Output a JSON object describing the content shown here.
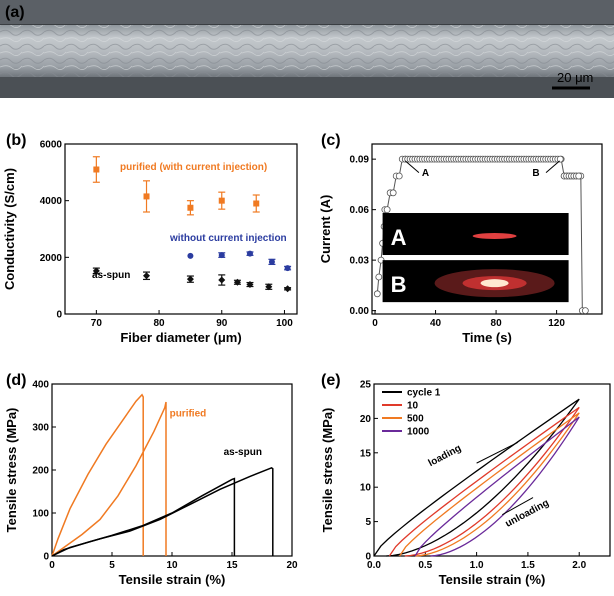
{
  "panels": {
    "a": {
      "label": "(a)",
      "scalebar": "20 μm"
    },
    "b": {
      "label": "(b)"
    },
    "c": {
      "label": "(c)"
    },
    "d": {
      "label": "(d)"
    },
    "e": {
      "label": "(e)"
    }
  },
  "chart_data": [
    {
      "id": "b",
      "type": "scatter",
      "xlabel": "Fiber diameter (μm)",
      "ylabel": "Conductivity (S/cm)",
      "xlim": [
        65,
        102
      ],
      "ylim": [
        0,
        6000
      ],
      "xticks": [
        70,
        80,
        90,
        100
      ],
      "yticks": [
        0,
        2000,
        4000,
        6000
      ],
      "annotations": [
        "purified (with current injection)",
        "without current injection",
        "as-spun"
      ],
      "series": [
        {
          "name": "purified (with current injection)",
          "color": "#f07a22",
          "marker": "square",
          "x": [
            70,
            78,
            85,
            90,
            95.5
          ],
          "y": [
            5100,
            4150,
            3750,
            4000,
            3900
          ],
          "err": [
            450,
            550,
            250,
            300,
            300
          ]
        },
        {
          "name": "without current injection",
          "color": "#2b3ca0",
          "marker": "circle",
          "x": [
            85,
            90,
            94.5,
            98,
            100.5
          ],
          "y": [
            2050,
            2080,
            2130,
            1840,
            1620
          ],
          "err": [
            0,
            80,
            60,
            90,
            60
          ]
        },
        {
          "name": "as-spun",
          "color": "#111111",
          "marker": "diamond",
          "x": [
            70,
            78,
            85,
            90,
            92.5,
            94.5,
            97.5,
            100.5
          ],
          "y": [
            1520,
            1350,
            1230,
            1200,
            1120,
            1040,
            960,
            890
          ],
          "err": [
            100,
            130,
            110,
            180,
            70,
            70,
            90,
            40
          ]
        }
      ]
    },
    {
      "id": "c",
      "type": "line",
      "xlabel": "Time (s)",
      "ylabel": "Current (A)",
      "xlim": [
        -2,
        150
      ],
      "ylim": [
        -0.002,
        0.099
      ],
      "xticks": [
        0,
        40,
        80,
        120
      ],
      "yticks": [
        0.0,
        0.03,
        0.06,
        0.09
      ],
      "ytick_labels": [
        "0.00",
        "0.03",
        "0.06",
        "0.09"
      ],
      "annotations": [
        "A",
        "B"
      ],
      "inset_labels": [
        "A",
        "B"
      ],
      "series": [
        {
          "name": "current",
          "x": [
            1.5,
            2.5,
            4,
            5,
            6,
            6.5,
            8,
            10,
            12,
            14,
            16,
            18,
            20,
            123,
            125,
            127,
            129,
            131,
            133,
            135,
            136,
            137,
            139
          ],
          "y": [
            0.01,
            0.02,
            0.03,
            0.04,
            0.05,
            0.06,
            0.06,
            0.07,
            0.07,
            0.08,
            0.08,
            0.09,
            0.09,
            0.09,
            0.08,
            0.08,
            0.08,
            0.08,
            0.08,
            0.08,
            0.08,
            0.0,
            0.0
          ]
        }
      ]
    },
    {
      "id": "d",
      "type": "line",
      "xlabel": "Tensile strain (%)",
      "ylabel": "Tensile stress (MPa)",
      "xlim": [
        0,
        20
      ],
      "ylim": [
        0,
        400
      ],
      "xticks": [
        0,
        5,
        10,
        15,
        20
      ],
      "yticks": [
        0,
        100,
        200,
        300,
        400
      ],
      "annotations": [
        "purified",
        "as-spun"
      ],
      "series": [
        {
          "name": "purified 1",
          "color": "#f07a22",
          "x": [
            0,
            0.5,
            1.5,
            3,
            4.5,
            6,
            7,
            7.5,
            7.6,
            7.6
          ],
          "y": [
            0,
            40,
            110,
            190,
            260,
            320,
            360,
            375,
            370,
            0
          ]
        },
        {
          "name": "purified 2",
          "color": "#f07a22",
          "x": [
            0,
            1,
            2.5,
            4,
            5.5,
            7,
            8.5,
            9.4,
            9.5,
            9.5
          ],
          "y": [
            0,
            20,
            50,
            85,
            140,
            210,
            290,
            345,
            358,
            0
          ]
        },
        {
          "name": "as-spun 1",
          "color": "#000000",
          "x": [
            0,
            1,
            3,
            5,
            7.5,
            10,
            12.5,
            15,
            15.2,
            15.2
          ],
          "y": [
            0,
            15,
            32,
            48,
            70,
            100,
            140,
            178,
            180,
            0
          ]
        },
        {
          "name": "as-spun 2",
          "color": "#000000",
          "x": [
            0,
            1.5,
            4,
            6.5,
            9,
            11.5,
            14,
            16.5,
            18.3,
            18.4,
            18.4
          ],
          "y": [
            0,
            20,
            40,
            58,
            85,
            120,
            155,
            185,
            205,
            203,
            0
          ]
        }
      ]
    },
    {
      "id": "e",
      "type": "line",
      "xlabel": "Tensile strain (%)",
      "ylabel": "Tensile stress (MPa)",
      "xlim": [
        0,
        2.3
      ],
      "ylim": [
        0,
        25
      ],
      "xticks": [
        0.0,
        0.5,
        1.0,
        1.5,
        2.0
      ],
      "yticks": [
        0,
        5,
        10,
        15,
        20,
        25
      ],
      "xtick_labels": [
        "0.0",
        "0.5",
        "1.0",
        "1.5",
        "2.0"
      ],
      "annotations": [
        "loading",
        "unloading"
      ],
      "series": [
        {
          "name": "cycle 1",
          "color": "#000000",
          "x0": 0.0,
          "xmax": 2.0,
          "ymax": 22.8,
          "xres": 0.12
        },
        {
          "name": "10",
          "color": "#e03a2a",
          "x0": 0.15,
          "xmax": 2.0,
          "ymax": 21.6,
          "xres": 0.3
        },
        {
          "name": "500",
          "color": "#f07a22",
          "x0": 0.25,
          "xmax": 2.0,
          "ymax": 20.8,
          "xres": 0.4
        },
        {
          "name": "1000",
          "color": "#6a2a9a",
          "x0": 0.4,
          "xmax": 2.0,
          "ymax": 20.2,
          "xres": 0.55
        }
      ]
    }
  ]
}
